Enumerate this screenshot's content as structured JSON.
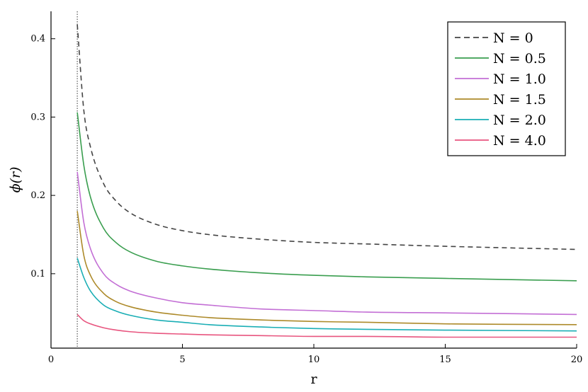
{
  "chart_data": {
    "type": "line",
    "title": "",
    "xlabel": "r",
    "ylabel": "ϕ(r)",
    "xlim": [
      0,
      20
    ],
    "ylim": [
      0.005,
      0.435
    ],
    "xticks": [
      0,
      5,
      10,
      15,
      20
    ],
    "xtick_labels": [
      "0",
      "5",
      "10",
      "15",
      "20"
    ],
    "yticks": [
      0.1,
      0.2,
      0.3,
      0.4
    ],
    "ytick_labels": [
      "0.1",
      "0.2",
      "0.3",
      "0.4"
    ],
    "grid": false,
    "legend_position": "top-right",
    "vline": {
      "x": 1.0,
      "style": "dotted",
      "color": "#555555"
    },
    "x": [
      1.0,
      1.25,
      1.5,
      2.0,
      2.5,
      3.0,
      4.0,
      5.0,
      6.0,
      8.0,
      10.0,
      12.0,
      15.0,
      20.0
    ],
    "series": [
      {
        "name": "N = 0",
        "color": "#444444",
        "dash": true,
        "values": [
          0.418,
          0.308,
          0.262,
          0.215,
          0.192,
          0.178,
          0.163,
          0.155,
          0.15,
          0.144,
          0.14,
          0.138,
          0.135,
          0.131
        ]
      },
      {
        "name": "N = 0.5",
        "color": "#3a9e4f",
        "dash": false,
        "values": [
          0.306,
          0.238,
          0.198,
          0.158,
          0.139,
          0.128,
          0.116,
          0.11,
          0.106,
          0.101,
          0.098,
          0.096,
          0.094,
          0.091
        ]
      },
      {
        "name": "N = 1.0",
        "color": "#c36fd5",
        "dash": false,
        "values": [
          0.23,
          0.165,
          0.132,
          0.1,
          0.086,
          0.078,
          0.069,
          0.063,
          0.06,
          0.055,
          0.053,
          0.051,
          0.05,
          0.048
        ]
      },
      {
        "name": "N = 1.5",
        "color": "#ad8a2a",
        "dash": false,
        "values": [
          0.18,
          0.123,
          0.098,
          0.075,
          0.064,
          0.058,
          0.051,
          0.047,
          0.044,
          0.041,
          0.039,
          0.038,
          0.036,
          0.035
        ]
      },
      {
        "name": "N = 2.0",
        "color": "#1aaeb5",
        "dash": false,
        "values": [
          0.12,
          0.095,
          0.078,
          0.06,
          0.052,
          0.047,
          0.041,
          0.038,
          0.035,
          0.032,
          0.03,
          0.029,
          0.028,
          0.027
        ]
      },
      {
        "name": "N = 4.0",
        "color": "#e8557f",
        "dash": false,
        "values": [
          0.048,
          0.04,
          0.036,
          0.031,
          0.028,
          0.026,
          0.024,
          0.023,
          0.022,
          0.021,
          0.02,
          0.02,
          0.019,
          0.019
        ]
      }
    ]
  }
}
